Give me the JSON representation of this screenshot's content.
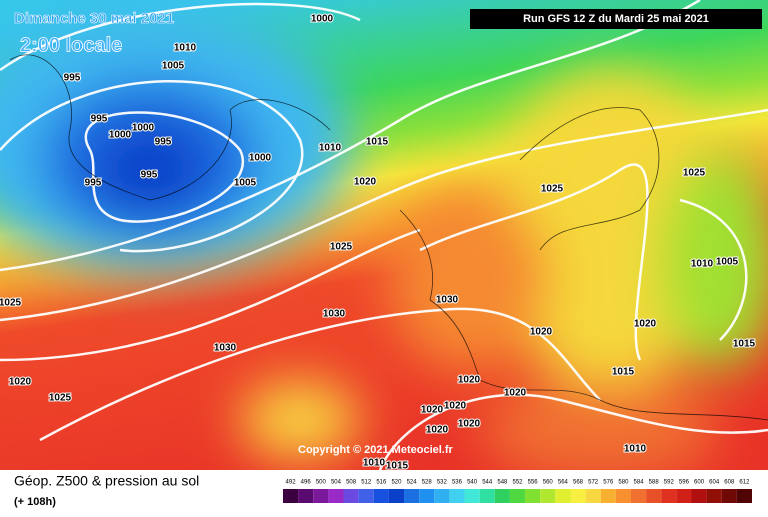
{
  "header": {
    "date": "Dimanche 30 mai 2021",
    "time": "2:00 locale",
    "run": "Run GFS 12 Z du Mardi 25 mai 2021"
  },
  "copyright": "Copyright © 2021 Meteociel.fr",
  "footer": {
    "title": "Géop. Z500 & pression au sol",
    "lead": "(+ 108h)"
  },
  "isobars": [
    1000,
    1010,
    1005,
    995,
    995,
    1000,
    1000,
    995,
    995,
    995,
    1000,
    1005,
    1010,
    1015,
    1020,
    1025,
    1025,
    1025,
    1010,
    1005,
    1030,
    1030,
    1030,
    1020,
    1020,
    1015,
    1015,
    1020,
    1020,
    1025,
    1020,
    1020,
    1020,
    1020,
    1020,
    1010,
    1015,
    1010,
    1025
  ],
  "scale": {
    "labels": [
      492,
      496,
      500,
      504,
      508,
      512,
      516,
      520,
      524,
      528,
      532,
      536,
      540,
      544,
      548,
      552,
      556,
      560,
      564,
      568,
      572,
      576,
      580,
      584,
      588,
      592,
      596,
      600,
      604,
      608,
      612
    ],
    "colors": [
      "#3a0040",
      "#5a0a6e",
      "#7a1a9a",
      "#9a2ac8",
      "#6a4ae0",
      "#4060e8",
      "#1850e0",
      "#0a40c8",
      "#1a70e0",
      "#2090f0",
      "#30b0f0",
      "#40d0f0",
      "#40e8d8",
      "#30e0a0",
      "#30d060",
      "#50d840",
      "#80e030",
      "#b0e830",
      "#e0f030",
      "#f8f040",
      "#f8d840",
      "#f8b030",
      "#f89030",
      "#f07030",
      "#e85028",
      "#e03020",
      "#d02018",
      "#b01010",
      "#901008",
      "#700808",
      "#500404"
    ]
  }
}
